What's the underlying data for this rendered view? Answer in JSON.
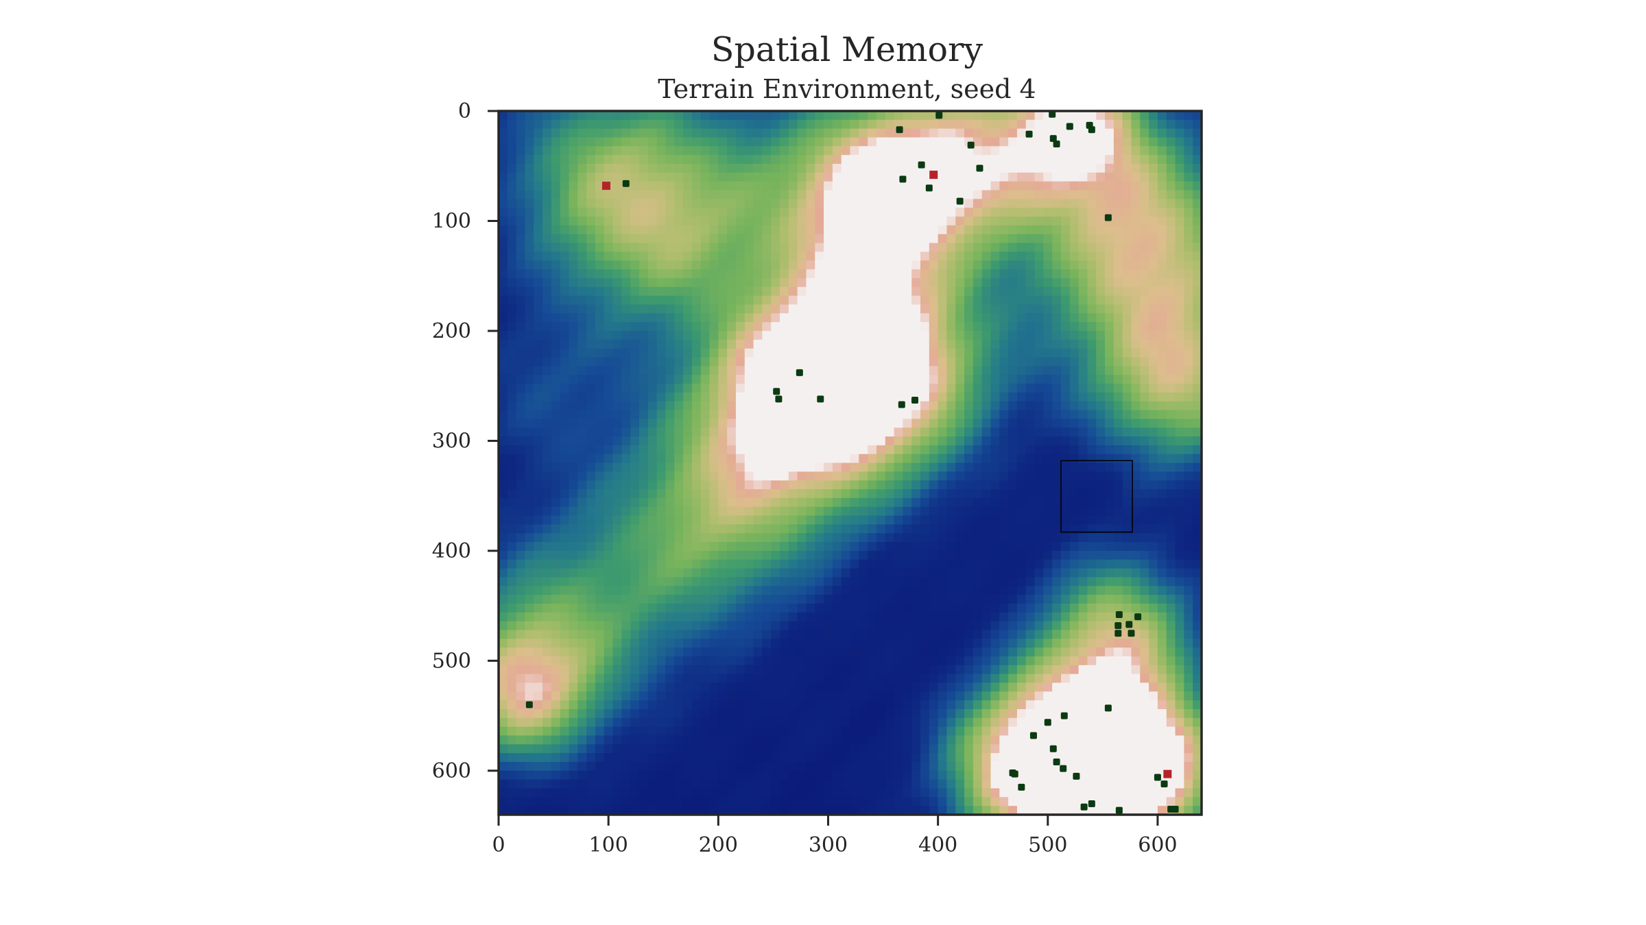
{
  "chart_data": {
    "type": "heatmap",
    "title": "Spatial Memory",
    "subtitle": "Terrain Environment, seed 4",
    "xlabel": "",
    "ylabel": "",
    "xlim": [
      0,
      640
    ],
    "ylim": [
      640,
      0
    ],
    "x_ticks": [
      0,
      100,
      200,
      300,
      400,
      500,
      600
    ],
    "y_ticks": [
      0,
      100,
      200,
      300,
      400,
      500,
      600
    ],
    "colormap": "gist_earth-like (deep blue low, green mid, tan/white peaks)",
    "colors": {
      "low": "#0a1a78",
      "mid_low": "#1e5a9a",
      "mid": "#3a9a7a",
      "mid_high": "#7cb85e",
      "high": "#d8c28a",
      "peak": "#f2ecea",
      "object_marker": "#0b3a12",
      "goal_marker": "#b5232a",
      "window_outline": "#000000"
    },
    "terrain_peaks": [
      {
        "x": 420,
        "y": 50,
        "height": 0.82,
        "radius": 60
      },
      {
        "x": 525,
        "y": 10,
        "height": 0.78,
        "radius": 45
      },
      {
        "x": 100,
        "y": 60,
        "height": 0.62,
        "radius": 70
      },
      {
        "x": 275,
        "y": 250,
        "height": 0.72,
        "radius": 55
      },
      {
        "x": 360,
        "y": 230,
        "height": 0.64,
        "radius": 60
      },
      {
        "x": 330,
        "y": 255,
        "height": 0.45,
        "radius": 80
      },
      {
        "x": 230,
        "y": 320,
        "height": 0.45,
        "radius": 70
      },
      {
        "x": 180,
        "y": 390,
        "height": 0.38,
        "radius": 70
      },
      {
        "x": 600,
        "y": 180,
        "height": 0.58,
        "radius": 75
      },
      {
        "x": 580,
        "y": 90,
        "height": 0.52,
        "radius": 65
      },
      {
        "x": 620,
        "y": 260,
        "height": 0.46,
        "radius": 50
      },
      {
        "x": 565,
        "y": 470,
        "height": 0.66,
        "radius": 50
      },
      {
        "x": 540,
        "y": 580,
        "height": 1.0,
        "radius": 60
      },
      {
        "x": 480,
        "y": 600,
        "height": 0.78,
        "radius": 55
      },
      {
        "x": 600,
        "y": 600,
        "height": 0.72,
        "radius": 45
      },
      {
        "x": 60,
        "y": 470,
        "height": 0.48,
        "radius": 70
      },
      {
        "x": 20,
        "y": 530,
        "height": 0.68,
        "radius": 45
      },
      {
        "x": 40,
        "y": 250,
        "height": 0.22,
        "radius": 60
      },
      {
        "x": 160,
        "y": 130,
        "height": 0.35,
        "radius": 60
      },
      {
        "x": 250,
        "y": 60,
        "height": 0.3,
        "radius": 70
      },
      {
        "x": 330,
        "y": 130,
        "height": 0.42,
        "radius": 55
      },
      {
        "x": 340,
        "y": 60,
        "height": 0.55,
        "radius": 50
      }
    ],
    "objects": [
      [
        116,
        66
      ],
      [
        365,
        17
      ],
      [
        401,
        4
      ],
      [
        385,
        49
      ],
      [
        368,
        62
      ],
      [
        392,
        70
      ],
      [
        430,
        31
      ],
      [
        438,
        52
      ],
      [
        420,
        82
      ],
      [
        483,
        21
      ],
      [
        504,
        3
      ],
      [
        520,
        14
      ],
      [
        505,
        25
      ],
      [
        508,
        30
      ],
      [
        538,
        13
      ],
      [
        540,
        17
      ],
      [
        555,
        97
      ],
      [
        253,
        255
      ],
      [
        255,
        262
      ],
      [
        274,
        238
      ],
      [
        293,
        262
      ],
      [
        367,
        267
      ],
      [
        379,
        263
      ],
      [
        565,
        458
      ],
      [
        582,
        460
      ],
      [
        564,
        468
      ],
      [
        574,
        467
      ],
      [
        564,
        475
      ],
      [
        576,
        475
      ],
      [
        28,
        540
      ],
      [
        555,
        543
      ],
      [
        515,
        550
      ],
      [
        500,
        556
      ],
      [
        487,
        568
      ],
      [
        505,
        580
      ],
      [
        508,
        592
      ],
      [
        514,
        598
      ],
      [
        468,
        602
      ],
      [
        470,
        603
      ],
      [
        476,
        615
      ],
      [
        526,
        605
      ],
      [
        533,
        633
      ],
      [
        540,
        630
      ],
      [
        565,
        636
      ],
      [
        600,
        606
      ],
      [
        606,
        612
      ],
      [
        612,
        635
      ],
      [
        616,
        635
      ]
    ],
    "goals": [
      [
        98,
        68
      ],
      [
        396,
        58
      ],
      [
        609,
        603
      ]
    ],
    "view_window": {
      "x": [
        512,
        577
      ],
      "y": [
        318,
        383
      ]
    }
  }
}
